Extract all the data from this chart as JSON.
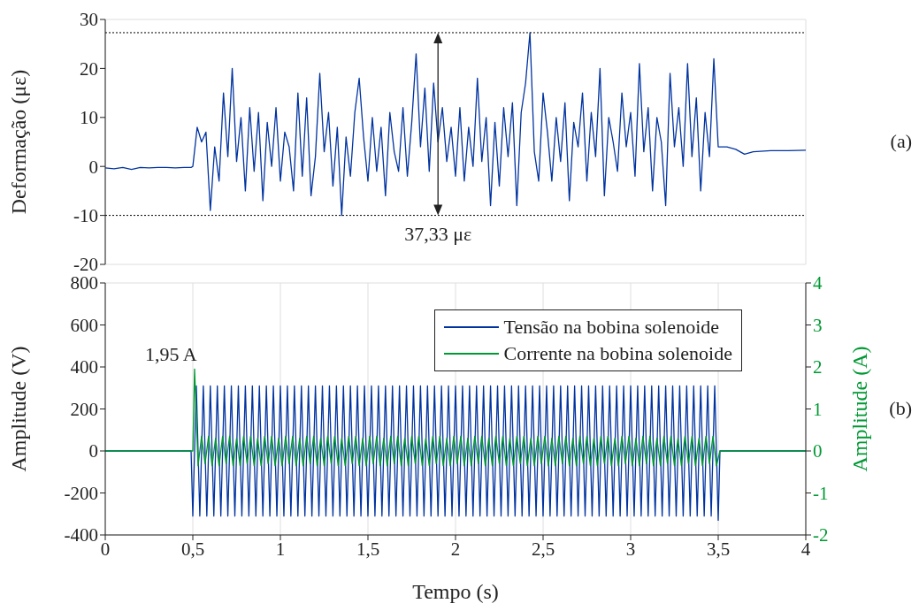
{
  "chart_data": [
    {
      "type": "line",
      "ylabel": "Deformação (με)",
      "xlim": [
        0,
        4
      ],
      "xticks": [
        0,
        0.5,
        1,
        1.5,
        2,
        2.5,
        3,
        3.5,
        4
      ],
      "ylim": [
        -20,
        30
      ],
      "yticks": [
        -20,
        -10,
        0,
        10,
        20,
        30
      ],
      "tick_labels": "y",
      "grid": true,
      "legend": false,
      "series": [
        {
          "color": "#0033a0",
          "x": [
            0,
            0.05,
            0.1,
            0.15,
            0.2,
            0.25,
            0.3,
            0.35,
            0.4,
            0.45,
            0.49,
            0.5,
            0.525,
            0.55,
            0.575,
            0.6,
            0.625,
            0.65,
            0.675,
            0.7,
            0.725,
            0.75,
            0.775,
            0.8,
            0.825,
            0.85,
            0.875,
            0.9,
            0.925,
            0.95,
            0.975,
            1.0,
            1.025,
            1.05,
            1.075,
            1.1,
            1.125,
            1.15,
            1.175,
            1.2,
            1.225,
            1.25,
            1.275,
            1.3,
            1.325,
            1.35,
            1.375,
            1.4,
            1.425,
            1.45,
            1.475,
            1.5,
            1.525,
            1.55,
            1.575,
            1.6,
            1.625,
            1.65,
            1.675,
            1.7,
            1.725,
            1.75,
            1.775,
            1.8,
            1.825,
            1.85,
            1.875,
            1.9,
            1.925,
            1.95,
            1.975,
            2.0,
            2.025,
            2.05,
            2.075,
            2.1,
            2.125,
            2.15,
            2.175,
            2.2,
            2.225,
            2.25,
            2.275,
            2.3,
            2.325,
            2.35,
            2.375,
            2.4,
            2.425,
            2.45,
            2.475,
            2.5,
            2.525,
            2.55,
            2.575,
            2.6,
            2.625,
            2.65,
            2.675,
            2.7,
            2.725,
            2.75,
            2.775,
            2.8,
            2.825,
            2.85,
            2.875,
            2.9,
            2.925,
            2.95,
            2.975,
            3.0,
            3.025,
            3.05,
            3.075,
            3.1,
            3.125,
            3.15,
            3.175,
            3.2,
            3.225,
            3.25,
            3.275,
            3.3,
            3.325,
            3.35,
            3.375,
            3.4,
            3.425,
            3.45,
            3.475,
            3.5,
            3.55,
            3.6,
            3.65,
            3.7,
            3.8,
            3.9,
            4
          ],
          "values": [
            -0.3,
            -0.5,
            -0.2,
            -0.6,
            -0.2,
            -0.3,
            -0.2,
            -0.2,
            -0.3,
            -0.2,
            -0.2,
            0,
            8,
            5,
            7,
            -9,
            4,
            -3,
            15,
            2,
            20,
            1,
            10,
            -5,
            12,
            -1,
            11,
            -7,
            9,
            0,
            12,
            -3,
            7,
            4,
            -5,
            15,
            -2,
            14,
            -6,
            2,
            19,
            3,
            11,
            -4,
            8,
            -10,
            6,
            -2,
            11,
            18,
            6,
            -3,
            10,
            -1,
            8,
            -6,
            11,
            3,
            -1,
            12,
            -2,
            9,
            23,
            4,
            16,
            -1,
            17,
            5,
            12,
            1,
            8,
            -2,
            12,
            -3,
            8,
            0,
            18,
            1,
            10,
            -8,
            9,
            -4,
            12,
            2,
            13,
            -8,
            11,
            17,
            27.3,
            3,
            -3,
            15,
            7,
            -3,
            10,
            1,
            13,
            -7,
            9,
            4,
            15,
            -3,
            11,
            2,
            20,
            -6,
            10,
            5,
            -1,
            15,
            4,
            11,
            -2,
            21,
            3,
            12,
            -5,
            10,
            5,
            -8,
            19,
            4,
            12,
            0,
            21,
            2,
            14,
            -5,
            11,
            2,
            22,
            4,
            4,
            3.5,
            2.5,
            3,
            3.2,
            3.2,
            3.3
          ]
        }
      ],
      "ref_lines": [
        {
          "axis": "y",
          "value": 27.3,
          "color": "#000000",
          "line_style": "dotted"
        },
        {
          "axis": "y",
          "value": -10,
          "color": "#000000",
          "line_style": "dotted"
        }
      ],
      "annotations": [
        "37,33 με",
        "(a)"
      ]
    },
    {
      "type": "line",
      "xlabel": "Tempo (s)",
      "ylabel": "Amplitude (V)",
      "y2label": "Amplitude (A)",
      "xlim": [
        0,
        4
      ],
      "xticks": [
        0,
        {
          "value": 0.5,
          "label": "0,5"
        },
        1,
        {
          "value": 1.5,
          "label": "1,5"
        },
        2,
        {
          "value": 2.5,
          "label": "2,5"
        },
        3,
        {
          "value": 3.5,
          "label": "3,5"
        },
        4
      ],
      "ylim": [
        -400,
        800
      ],
      "yticks": [
        -400,
        -200,
        0,
        200,
        400,
        600,
        800
      ],
      "y2lim": [
        -2,
        4
      ],
      "y2ticks": [
        -2,
        -1,
        0,
        1,
        2,
        3,
        4
      ],
      "grid": true,
      "legend": "top right",
      "series": [
        {
          "name": "Tensão na bobina solenoide",
          "color": "#0033a0",
          "x": [
            0,
            0.49,
            0.5,
            0.52,
            0.54,
            0.56,
            0.58,
            0.6,
            0.62,
            0.64,
            0.66,
            0.68,
            0.7,
            0.72,
            0.74,
            0.76,
            0.78,
            0.8,
            0.82,
            0.84,
            0.86,
            0.88,
            0.9,
            0.92,
            0.94,
            0.96,
            0.98,
            1.0,
            1.02,
            1.04,
            1.06,
            1.08,
            1.1,
            1.12,
            1.14,
            1.16,
            1.18,
            1.2,
            1.22,
            1.24,
            1.26,
            1.28,
            1.3,
            1.32,
            1.34,
            1.36,
            1.38,
            1.4,
            1.42,
            1.44,
            1.46,
            1.48,
            1.5,
            1.52,
            1.54,
            1.56,
            1.58,
            1.6,
            1.62,
            1.64,
            1.66,
            1.68,
            1.7,
            1.72,
            1.74,
            1.76,
            1.78,
            1.8,
            1.82,
            1.84,
            1.86,
            1.88,
            1.9,
            1.92,
            1.94,
            1.96,
            1.98,
            2.0,
            2.02,
            2.04,
            2.06,
            2.08,
            2.1,
            2.12,
            2.14,
            2.16,
            2.18,
            2.2,
            2.22,
            2.24,
            2.26,
            2.28,
            2.3,
            2.32,
            2.34,
            2.36,
            2.38,
            2.4,
            2.42,
            2.44,
            2.46,
            2.48,
            2.5,
            2.52,
            2.54,
            2.56,
            2.58,
            2.6,
            2.62,
            2.64,
            2.66,
            2.68,
            2.7,
            2.72,
            2.74,
            2.76,
            2.78,
            2.8,
            2.82,
            2.84,
            2.86,
            2.88,
            2.9,
            2.92,
            2.94,
            2.96,
            2.98,
            3.0,
            3.02,
            3.04,
            3.06,
            3.08,
            3.1,
            3.12,
            3.14,
            3.16,
            3.18,
            3.2,
            3.22,
            3.24,
            3.26,
            3.28,
            3.3,
            3.32,
            3.34,
            3.36,
            3.38,
            3.4,
            3.42,
            3.44,
            3.46,
            3.48,
            3.5,
            3.51,
            4
          ],
          "values": [
            0,
            0,
            -310,
            310,
            -310,
            310,
            -310,
            310,
            -310,
            310,
            -310,
            310,
            -310,
            310,
            -310,
            310,
            -310,
            310,
            -310,
            310,
            -310,
            310,
            -310,
            310,
            -310,
            310,
            -310,
            310,
            -310,
            310,
            -310,
            310,
            -310,
            310,
            -310,
            310,
            -310,
            310,
            -310,
            310,
            -310,
            310,
            -310,
            310,
            -310,
            310,
            -310,
            310,
            -310,
            310,
            -310,
            310,
            -310,
            310,
            -310,
            310,
            -310,
            310,
            -310,
            310,
            -310,
            310,
            -310,
            310,
            -310,
            310,
            -310,
            310,
            -310,
            310,
            -310,
            310,
            -310,
            310,
            -310,
            310,
            -310,
            310,
            -310,
            310,
            -310,
            310,
            -310,
            310,
            -310,
            310,
            -310,
            310,
            -310,
            310,
            -310,
            310,
            -310,
            310,
            -310,
            310,
            -310,
            310,
            -310,
            310,
            -310,
            310,
            -310,
            310,
            -310,
            310,
            -310,
            310,
            -310,
            310,
            -310,
            310,
            -310,
            310,
            -310,
            310,
            -310,
            310,
            -310,
            310,
            -310,
            310,
            -310,
            310,
            -310,
            310,
            -310,
            310,
            -310,
            310,
            -310,
            310,
            -310,
            310,
            -310,
            310,
            -310,
            310,
            -310,
            310,
            -310,
            310,
            -310,
            310,
            -310,
            310,
            -310,
            310,
            -310,
            310,
            -310,
            310,
            -330,
            0,
            0
          ]
        },
        {
          "name": "Corrente na bobina solenoide",
          "color": "#009933",
          "axis": "y2",
          "x": [
            0,
            0.5,
            0.51,
            0.53,
            0.55,
            0.57,
            0.59,
            0.61,
            0.63,
            0.65,
            0.67,
            0.69,
            0.71,
            0.73,
            0.75,
            0.77,
            0.79,
            0.81,
            0.83,
            0.85,
            0.87,
            0.89,
            0.91,
            0.93,
            0.95,
            0.97,
            0.99,
            1.01,
            1.03,
            1.05,
            1.07,
            1.09,
            1.11,
            1.13,
            1.15,
            1.17,
            1.19,
            1.21,
            1.23,
            1.25,
            1.27,
            1.29,
            1.31,
            1.33,
            1.35,
            1.37,
            1.39,
            1.41,
            1.43,
            1.45,
            1.47,
            1.49,
            1.51,
            1.53,
            1.55,
            1.57,
            1.59,
            1.61,
            1.63,
            1.65,
            1.67,
            1.69,
            1.71,
            1.73,
            1.75,
            1.77,
            1.79,
            1.81,
            1.83,
            1.85,
            1.87,
            1.89,
            1.91,
            1.93,
            1.95,
            1.97,
            1.99,
            2.01,
            2.03,
            2.05,
            2.07,
            2.09,
            2.11,
            2.13,
            2.15,
            2.17,
            2.19,
            2.21,
            2.23,
            2.25,
            2.27,
            2.29,
            2.31,
            2.33,
            2.35,
            2.37,
            2.39,
            2.41,
            2.43,
            2.45,
            2.47,
            2.49,
            2.51,
            2.53,
            2.55,
            2.57,
            2.59,
            2.61,
            2.63,
            2.65,
            2.67,
            2.69,
            2.71,
            2.73,
            2.75,
            2.77,
            2.79,
            2.81,
            2.83,
            2.85,
            2.87,
            2.89,
            2.91,
            2.93,
            2.95,
            2.97,
            2.99,
            3.01,
            3.03,
            3.05,
            3.07,
            3.09,
            3.11,
            3.13,
            3.15,
            3.17,
            3.19,
            3.21,
            3.23,
            3.25,
            3.27,
            3.29,
            3.31,
            3.33,
            3.35,
            3.37,
            3.39,
            3.41,
            3.43,
            3.45,
            3.47,
            3.49,
            3.51,
            4
          ],
          "values": [
            0,
            0,
            1.95,
            -0.35,
            0.35,
            -0.3,
            0.35,
            -0.35,
            0.3,
            -0.35,
            0.35,
            -0.3,
            0.35,
            -0.35,
            0.3,
            -0.35,
            0.35,
            -0.3,
            0.35,
            -0.35,
            0.3,
            -0.35,
            0.35,
            -0.3,
            0.35,
            -0.35,
            0.3,
            -0.35,
            0.35,
            -0.3,
            0.35,
            -0.35,
            0.3,
            -0.35,
            0.35,
            -0.3,
            0.35,
            -0.35,
            0.3,
            -0.35,
            0.35,
            -0.3,
            0.35,
            -0.35,
            0.3,
            -0.35,
            0.35,
            -0.3,
            0.35,
            -0.35,
            0.3,
            -0.35,
            0.35,
            -0.3,
            0.35,
            -0.35,
            0.3,
            -0.35,
            0.35,
            -0.3,
            0.35,
            -0.35,
            0.3,
            -0.35,
            0.35,
            -0.3,
            0.35,
            -0.35,
            0.3,
            -0.35,
            0.35,
            -0.3,
            0.35,
            -0.35,
            0.3,
            -0.35,
            0.35,
            -0.3,
            0.35,
            -0.35,
            0.3,
            -0.35,
            0.35,
            -0.3,
            0.35,
            -0.35,
            0.3,
            -0.35,
            0.35,
            -0.3,
            0.35,
            -0.35,
            0.3,
            -0.35,
            0.35,
            -0.3,
            0.35,
            -0.35,
            0.3,
            -0.35,
            0.35,
            -0.3,
            0.35,
            -0.35,
            0.3,
            -0.35,
            0.35,
            -0.3,
            0.35,
            -0.35,
            0.3,
            -0.35,
            0.35,
            -0.3,
            0.35,
            -0.35,
            0.3,
            -0.35,
            0.35,
            -0.3,
            0.35,
            -0.35,
            0.3,
            -0.35,
            0.35,
            -0.3,
            0.35,
            -0.35,
            0.3,
            -0.35,
            0.35,
            -0.3,
            0.35,
            -0.35,
            0.3,
            -0.35,
            0.35,
            -0.3,
            0.35,
            -0.35,
            0.3,
            -0.35,
            0.35,
            -0.3,
            0.35,
            -0.35,
            0.3,
            -0.35,
            0.35,
            -0.3,
            0.35,
            -0.35,
            0,
            0
          ]
        }
      ],
      "annotations": [
        "1,95 A",
        "(b)"
      ]
    }
  ]
}
